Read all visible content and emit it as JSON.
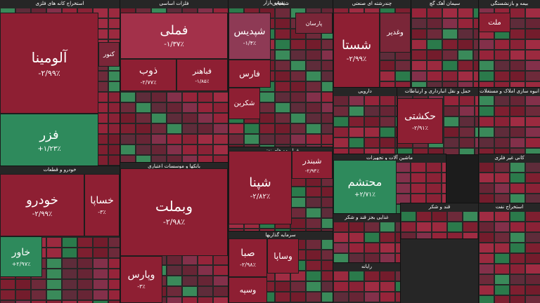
{
  "header": {
    "title": "نقشه بازار"
  },
  "sectors": [
    {
      "name": "استخراج کانه های فلزی",
      "tiles": [
        {
          "symbol": "آلومینا",
          "change": "-۲/۹۹٪"
        },
        {
          "symbol": "فزر",
          "change": "+۱/۲۳٪"
        },
        {
          "symbol": "کنور"
        }
      ]
    },
    {
      "name": "خودرو و قطعات",
      "tiles": [
        {
          "symbol": "خودرو",
          "change": "-۲/۹۹٪"
        },
        {
          "symbol": "خساپا",
          "change": "-۳٪"
        },
        {
          "symbol": "خاور",
          "change": "+۲/۹۷٪"
        }
      ]
    },
    {
      "name": "فلزات اساسی",
      "tiles": [
        {
          "symbol": "فملی",
          "change": "-۱/۳۷٪"
        },
        {
          "symbol": "ذوب",
          "change": "-۲/۷۷٪"
        },
        {
          "symbol": "فباهنر",
          "change": "-۱/۸۵٪"
        }
      ]
    },
    {
      "name": "بانکها و موسسات اعتباری",
      "tiles": [
        {
          "symbol": "وبملت",
          "change": "-۲/۹۸٪"
        },
        {
          "symbol": "وپارس",
          "change": "-۳٪"
        }
      ]
    },
    {
      "name": "شیمیایی",
      "tiles": [
        {
          "symbol": "شپدیس",
          "change": "-۱/۴٪"
        },
        {
          "symbol": "فارس"
        },
        {
          "symbol": "شکربن"
        },
        {
          "symbol": "پارسان"
        }
      ]
    },
    {
      "name": "فراورده های نفتی",
      "tiles": [
        {
          "symbol": "شبندر",
          "change": "-۲/۹۴٪"
        },
        {
          "symbol": "شپنا",
          "change": "-۲/۸۲٪"
        }
      ]
    },
    {
      "name": "سرمایه گذاریها",
      "tiles": [
        {
          "symbol": "صبا",
          "change": "-۲/۹۸٪"
        },
        {
          "symbol": "وساپا"
        },
        {
          "symbol": "وسپه"
        }
      ]
    },
    {
      "name": "چندرشته ای صنعتی",
      "tiles": [
        {
          "symbol": "شستا",
          "change": "-۲/۹۹٪"
        },
        {
          "symbol": "وغدیر"
        }
      ]
    },
    {
      "name": "سیمان آهک گچ",
      "tiles": []
    },
    {
      "name": "بیمه و بازنشستگی",
      "tiles": [
        {
          "symbol": "ملت"
        }
      ]
    },
    {
      "name": "دارویی",
      "tiles": []
    },
    {
      "name": "حمل و نقل انبارداری و ارتباطات",
      "tiles": [
        {
          "symbol": "حکشتی",
          "change": "-۲/۹۱٪"
        }
      ]
    },
    {
      "name": "انبوه سازی املاک و مستغلات",
      "tiles": []
    },
    {
      "name": "ماشین آلات و تجهیزات",
      "tiles": [
        {
          "symbol": "محتشم",
          "change": "+۲/۷۱٪"
        }
      ]
    },
    {
      "name": "کانی غیر فلزی",
      "tiles": []
    },
    {
      "name": "غذایی بجز قند و شکر",
      "tiles": []
    },
    {
      "name": "قند و شکر",
      "tiles": []
    },
    {
      "name": "رایانه",
      "tiles": []
    },
    {
      "name": "استخراج نفت",
      "tiles": []
    }
  ]
}
